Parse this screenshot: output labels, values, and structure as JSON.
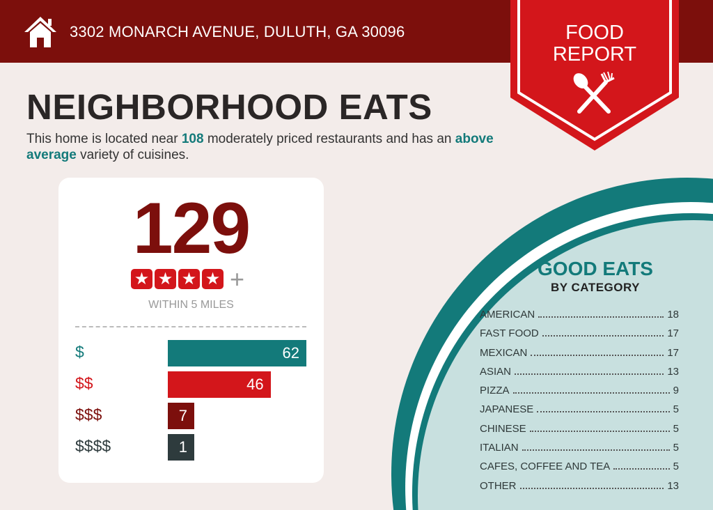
{
  "header": {
    "address": "3302 MONARCH AVENUE, DULUTH, GA 30096",
    "icon": "home-icon"
  },
  "ribbon": {
    "line1": "FOOD",
    "line2": "REPORT",
    "icon": "utensils-icon",
    "color": "#d3161b"
  },
  "title": "NEIGHBORHOOD EATS",
  "subtitle": {
    "part1": "This home is located near ",
    "count": "108",
    "part2": " moderately priced restaurants and has an ",
    "variety": "above average",
    "part3": " variety of cuisines."
  },
  "summary": {
    "total": "129",
    "stars": 4,
    "plus": "+",
    "within": "WITHIN 5 MILES"
  },
  "chart_data": {
    "type": "bar",
    "categories": [
      "$",
      "$$",
      "$$$",
      "$$$$"
    ],
    "values": [
      62,
      46,
      7,
      1
    ],
    "colors": [
      "#137a7a",
      "#d3161b",
      "#7c0f0c",
      "#2e3b3d"
    ]
  },
  "good_eats": {
    "title": "GOOD EATS",
    "subtitle": "BY CATEGORY",
    "items": [
      {
        "name": "AMERICAN",
        "count": "18"
      },
      {
        "name": "FAST FOOD",
        "count": "17"
      },
      {
        "name": "MEXICAN",
        "count": "17"
      },
      {
        "name": "ASIAN",
        "count": "13"
      },
      {
        "name": "PIZZA",
        "count": "9"
      },
      {
        "name": "JAPANESE",
        "count": "5"
      },
      {
        "name": "CHINESE",
        "count": "5"
      },
      {
        "name": "ITALIAN",
        "count": "5"
      },
      {
        "name": "CAFES, COFFEE AND TEA",
        "count": "5"
      },
      {
        "name": "OTHER",
        "count": "13"
      }
    ]
  }
}
